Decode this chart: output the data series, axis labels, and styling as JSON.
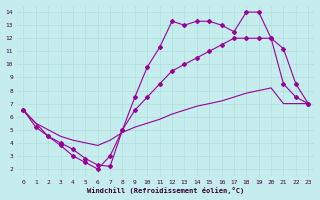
{
  "xlabel": "Windchill (Refroidissement éolien,°C)",
  "background_color": "#c5eded",
  "line_color": "#990099",
  "xlim": [
    -0.5,
    23.5
  ],
  "ylim": [
    1.5,
    14.5
  ],
  "xticks": [
    0,
    1,
    2,
    3,
    4,
    5,
    6,
    7,
    8,
    9,
    10,
    11,
    12,
    13,
    14,
    15,
    16,
    17,
    18,
    19,
    20,
    21,
    22,
    23
  ],
  "yticks": [
    2,
    3,
    4,
    5,
    6,
    7,
    8,
    9,
    10,
    11,
    12,
    13,
    14
  ],
  "line1_x": [
    0,
    1,
    2,
    3,
    4,
    5,
    6,
    7,
    8,
    9,
    10,
    11,
    12,
    13,
    14,
    15,
    16,
    17,
    18,
    19,
    20,
    21,
    22,
    23
  ],
  "line1_y": [
    6.5,
    5.2,
    4.5,
    4.0,
    3.5,
    2.8,
    2.3,
    2.2,
    5.0,
    7.5,
    9.8,
    11.3,
    13.3,
    13.0,
    13.3,
    13.3,
    13.0,
    12.5,
    14.0,
    14.0,
    12.0,
    11.2,
    8.5,
    7.0
  ],
  "line2_x": [
    0,
    2,
    3,
    4,
    5,
    6,
    7,
    8,
    9,
    10,
    11,
    12,
    13,
    14,
    15,
    16,
    17,
    18,
    19,
    20,
    21,
    22,
    23
  ],
  "line2_y": [
    6.5,
    4.5,
    3.8,
    3.0,
    2.5,
    2.0,
    3.0,
    5.0,
    6.5,
    7.5,
    8.5,
    9.5,
    10.0,
    10.5,
    11.0,
    11.5,
    12.0,
    12.0,
    12.0,
    12.0,
    8.5,
    7.5,
    7.0
  ],
  "line3_x": [
    0,
    1,
    2,
    3,
    4,
    5,
    6,
    7,
    8,
    9,
    10,
    11,
    12,
    13,
    14,
    15,
    16,
    17,
    18,
    19,
    20,
    21,
    22,
    23
  ],
  "line3_y": [
    6.5,
    5.5,
    5.0,
    4.5,
    4.2,
    4.0,
    3.8,
    4.2,
    4.8,
    5.2,
    5.5,
    5.8,
    6.2,
    6.5,
    6.8,
    7.0,
    7.2,
    7.5,
    7.8,
    8.0,
    8.2,
    7.0,
    7.0,
    7.0
  ],
  "grid_color": "#b0dede",
  "marker": "D",
  "markersize": 2.0
}
